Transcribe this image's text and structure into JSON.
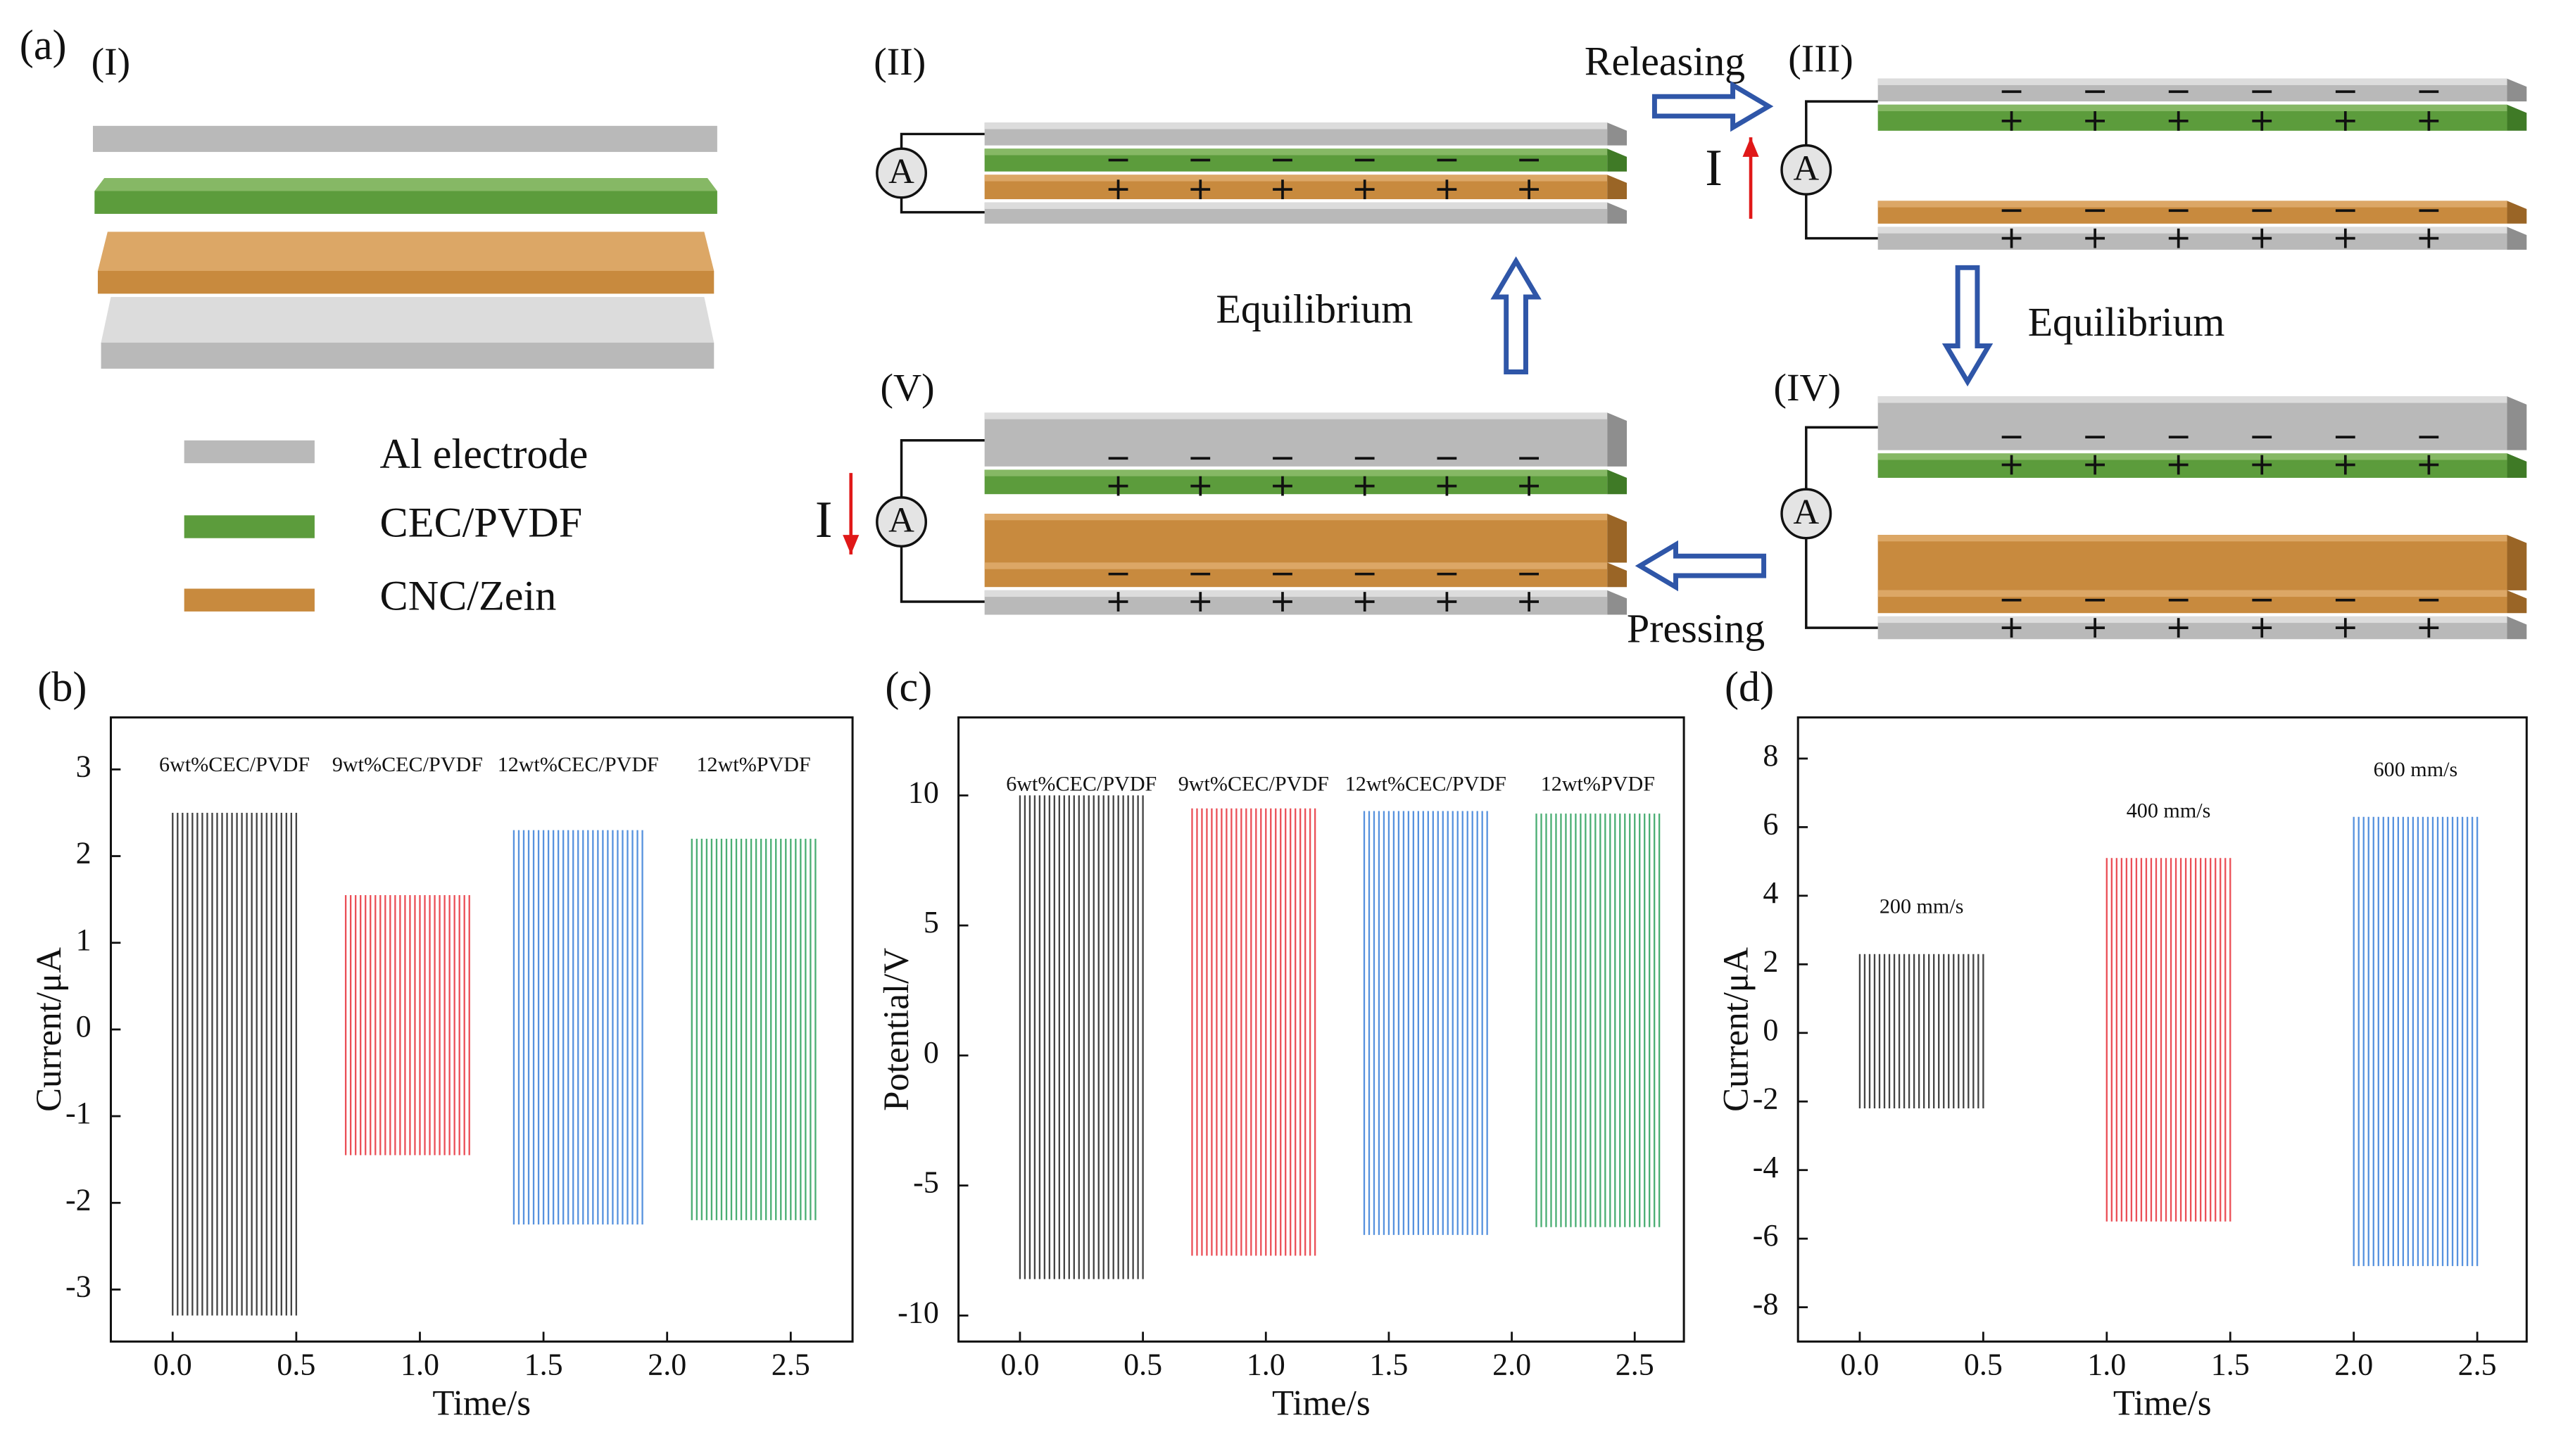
{
  "diagram": {
    "panel_label": "(a)",
    "stages": [
      "(I)",
      "(II)",
      "(III)",
      "(IV)",
      "(V)"
    ],
    "legend": [
      "Al electrode",
      "CEC/PVDF",
      "CNC/Zein"
    ],
    "steps": [
      "Releasing",
      "Equilibrium",
      "Equilibrium",
      "Pressing"
    ],
    "current_label": "I",
    "ammeter_label": "A"
  },
  "chart_data": [
    {
      "type": "line",
      "panel_label": "(b)",
      "xlabel": "Time/s",
      "ylabel": "Current/μA",
      "label_at": "top",
      "xlim": [
        -0.25,
        2.75
      ],
      "xticks": [
        {
          "value": 0,
          "label": "0.0"
        },
        0.5,
        {
          "value": 1,
          "label": "1.0"
        },
        1.5,
        {
          "value": 2,
          "label": "2.0"
        },
        2.5
      ],
      "ylim": [
        -3.6,
        3.6
      ],
      "yticks": [
        -3,
        -2,
        -1,
        0,
        1,
        2,
        3
      ],
      "series": [
        {
          "name": "6wt%CEC/PVDF",
          "color": "#222222",
          "x_range": [
            0,
            0.5
          ],
          "max": 2.5,
          "min": -3.3
        },
        {
          "name": "9wt%CEC/PVDF",
          "color": "#e8303a",
          "x_range": [
            0.7,
            1.2
          ],
          "max": 1.55,
          "min": -1.45
        },
        {
          "name": "12wt%CEC/PVDF",
          "color": "#3a7fd8",
          "x_range": [
            1.38,
            1.9
          ],
          "max": 2.3,
          "min": -2.25
        },
        {
          "name": "12wt%PVDF",
          "color": "#2aa05a",
          "x_range": [
            2.1,
            2.6
          ],
          "max": 2.2,
          "min": -2.2
        }
      ]
    },
    {
      "type": "line",
      "panel_label": "(c)",
      "xlabel": "Time/s",
      "ylabel": "Potential/V",
      "label_at": "top",
      "xlim": [
        -0.25,
        2.7
      ],
      "xticks": [
        {
          "value": 0,
          "label": "0.0"
        },
        0.5,
        {
          "value": 1,
          "label": "1.0"
        },
        1.5,
        {
          "value": 2,
          "label": "2.0"
        },
        2.5
      ],
      "ylim": [
        -11,
        13
      ],
      "yticks": [
        -10,
        -5,
        0,
        5,
        10
      ],
      "series": [
        {
          "name": "6wt%CEC/PVDF",
          "color": "#222222",
          "x_range": [
            0,
            0.5
          ],
          "max": 10,
          "min": -8.6
        },
        {
          "name": "9wt%CEC/PVDF",
          "color": "#e8303a",
          "x_range": [
            0.7,
            1.2
          ],
          "max": 9.5,
          "min": -7.7
        },
        {
          "name": "12wt%CEC/PVDF",
          "color": "#3a7fd8",
          "x_range": [
            1.4,
            1.9
          ],
          "max": 9.4,
          "min": -6.9
        },
        {
          "name": "12wt%PVDF",
          "color": "#2aa05a",
          "x_range": [
            2.1,
            2.6
          ],
          "max": 9.3,
          "min": -6.6
        }
      ]
    },
    {
      "type": "line",
      "panel_label": "(d)",
      "xlabel": "Time/s",
      "ylabel": "Current/μA",
      "label_at": "above",
      "xlim": [
        -0.25,
        2.7
      ],
      "xticks": [
        {
          "value": 0,
          "label": "0.0"
        },
        0.5,
        {
          "value": 1,
          "label": "1.0"
        },
        1.5,
        {
          "value": 2,
          "label": "2.0"
        },
        2.5
      ],
      "ylim": [
        -9,
        9.2
      ],
      "yticks": [
        -8,
        -6,
        -4,
        -2,
        0,
        2,
        4,
        6,
        8
      ],
      "series": [
        {
          "name": "200 mm/s",
          "color": "#222222",
          "x_range": [
            0,
            0.5
          ],
          "max": 2.3,
          "min": -2.2
        },
        {
          "name": "400 mm/s",
          "color": "#e8303a",
          "x_range": [
            1,
            1.5
          ],
          "max": 5.1,
          "min": -5.5
        },
        {
          "name": "600 mm/s",
          "color": "#3a7fd8",
          "x_range": [
            2,
            2.5
          ],
          "max": 6.3,
          "min": -6.8
        }
      ]
    }
  ]
}
